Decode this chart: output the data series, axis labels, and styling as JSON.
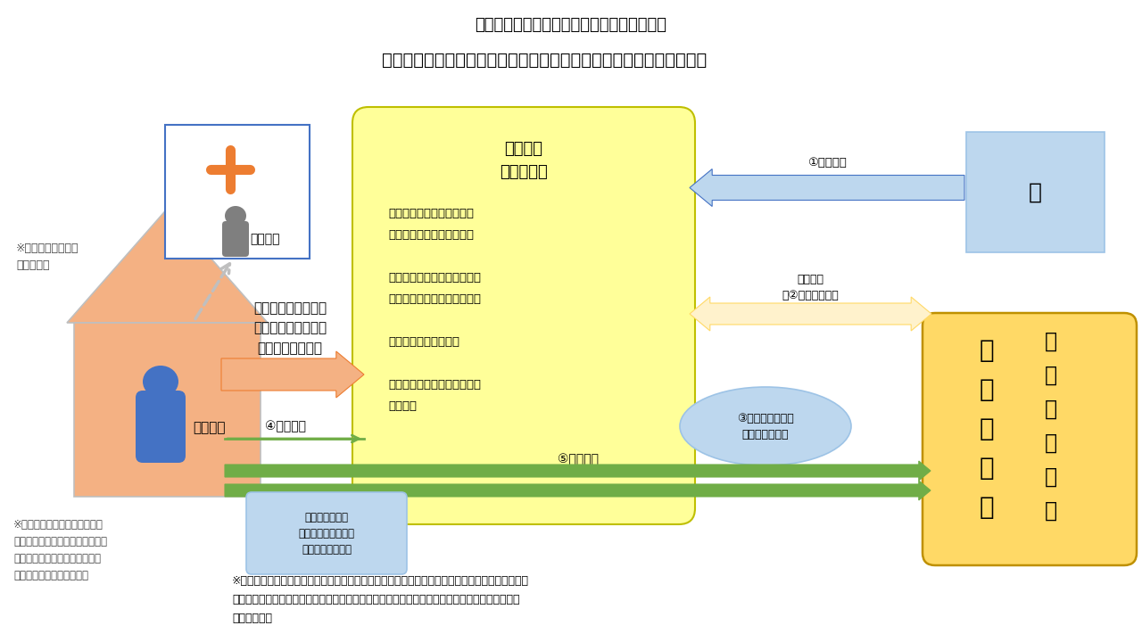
{
  "bg_color": "#ffffff",
  "title1": "【緊急時の応援に係るコーディネート事業】",
  "title2": "２　家族が感染した要介護者への訪問介護職員の派遣（イメージ図）",
  "house_fill": "#F4B183",
  "house_edge": "#BFBFBF",
  "person_blue": "#4472C4",
  "person_gray": "#7F7F7F",
  "hosp_fill": "#FFFFFF",
  "hosp_edge": "#4472C4",
  "cross_color": "#ED7D31",
  "center_fill": "#FFFF99",
  "center_edge": "#BFBF00",
  "ken_fill": "#BDD7EE",
  "ken_edge": "#9DC3E6",
  "kaigo_fill": "#FFD966",
  "kaigo_edge": "#BF9000",
  "ell_fill": "#BDD7EE",
  "ell_edge": "#9DC3E6",
  "visit_fill": "#BDD7EE",
  "visit_edge": "#9DC3E6",
  "arr_blue_fill": "#BDD7EE",
  "arr_blue_edge": "#4472C4",
  "arr_orange_fill": "#F4B183",
  "arr_orange_edge": "#ED7D31",
  "arr_green": "#70AD47",
  "arr_gray": "#BFBFBF",
  "arr2_fill": "#FFF2CC",
  "arr2_edge": "#FFD966",
  "note_left1": "※政令市・中核市の\n場合も対象",
  "note_left2": "※要介護者は濃厚接触者で陰性\nの場合（陽性の場合は入院）で、\n医療機関への入院や施設での受\n入れが困難な場合を想定。",
  "note_bottom": "※　派遣に要する旅費、宿泊費、割増手当等のかかり増し経費に対する補助及びマスク、ガウン、\n　フェイスシールド、エタノール等の物資の提供は、県による「サービス提供体制確保事業」を\n　活用する。",
  "lbl_family": "家族入院",
  "lbl_care": "要介護者",
  "lbl_ken": "県",
  "lbl_center_title": "受託法人\n（県社協）",
  "lbl_center_body": "・登録済応援職員及び新規\n　登録応援職員の派遣調整\n\n・新規派遣職員候補の募集、\n　登録（施設等の了解必要）\n\n・感染防止研修の実施\n\n・ヘルパー協など関係団体と\n　の調整",
  "lbl_request": "保健所、市町村、訪\n問介護事業所、ケア\nマネ等からの要請",
  "lbl_arr1": "①事業委託",
  "lbl_arr2": "新規登録\n（②募集、登録）",
  "lbl_arr3": "③感染防止のため\nの研修会の実施",
  "lbl_arr4": "④派遣要請",
  "lbl_arr5": "⑤派遣調整",
  "lbl_visit": "訪問介護事業所\n（既に訪問介護を利\n用している場合）",
  "kaigo_col1": [
    "介",
    "護",
    "事",
    "業",
    "所"
  ],
  "kaigo_col2": [
    "派",
    "遣",
    "協",
    "力",
    "訪",
    "問"
  ]
}
